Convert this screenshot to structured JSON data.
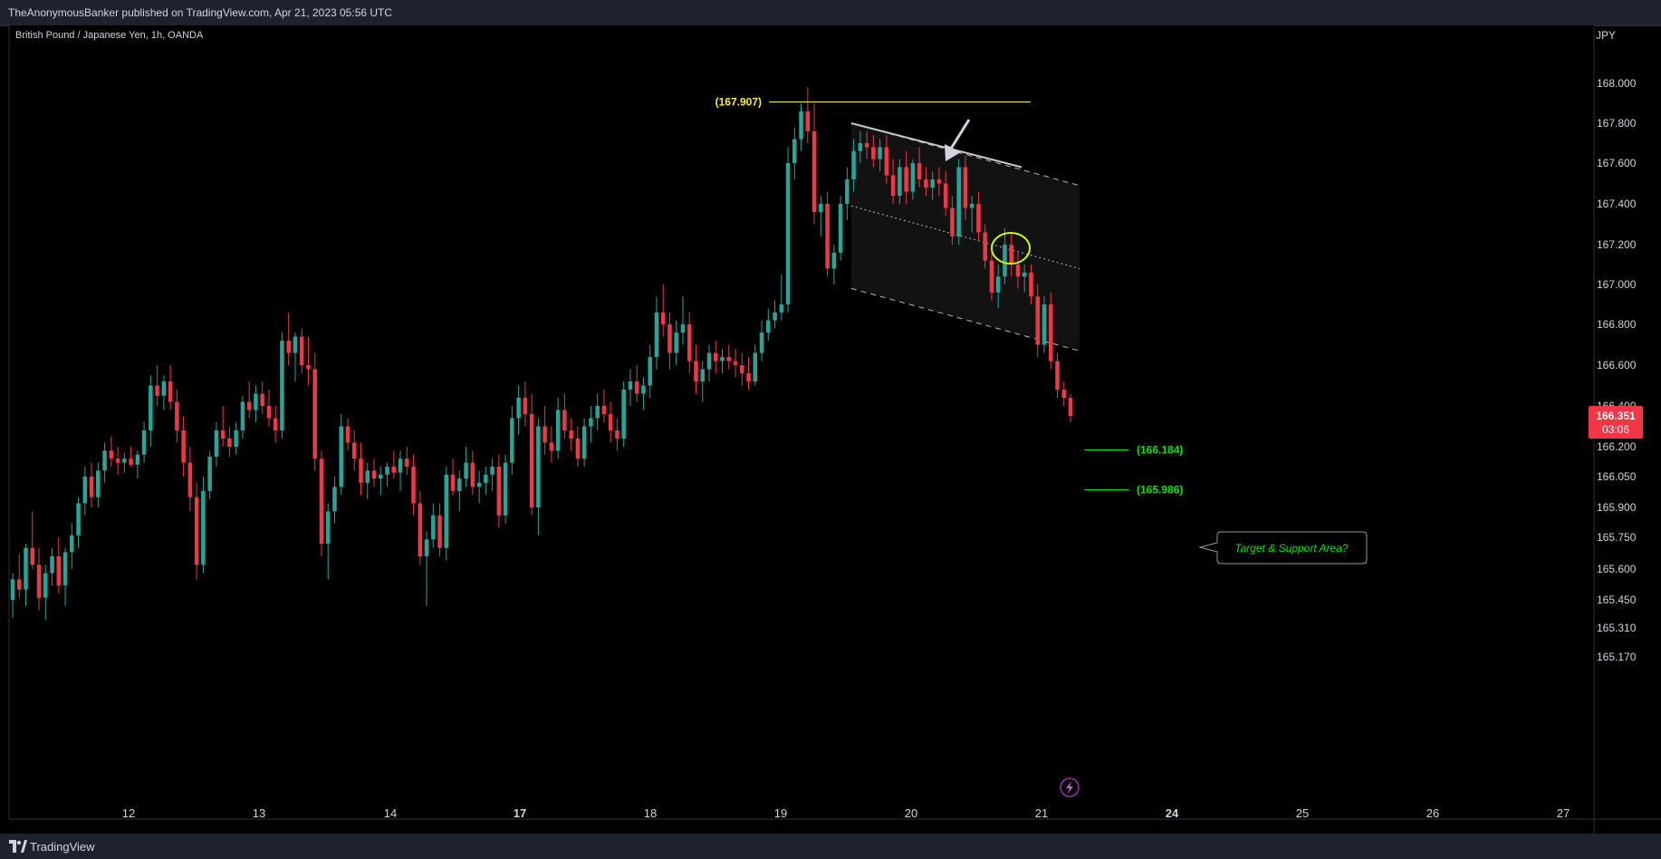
{
  "header": {
    "publisher_line": "TheAnonymousBanker published on TradingView.com, Apr 21, 2023 05:56 UTC"
  },
  "footer": {
    "brand": "TradingView"
  },
  "chart_data": {
    "type": "candlestick",
    "title": "British Pound / Japanese Yen, 1h, OANDA",
    "currency": "JPY",
    "price_label": "166.351",
    "countdown_label": "03:06",
    "y_ticks": [
      168.0,
      167.8,
      167.6,
      167.4,
      167.2,
      167.0,
      166.8,
      166.6,
      166.4,
      166.2,
      166.05,
      165.9,
      165.75,
      165.6,
      165.45,
      165.31,
      165.17
    ],
    "y_tick_labels": [
      "168.000",
      "167.800",
      "167.600",
      "167.400",
      "167.200",
      "167.000",
      "166.800",
      "166.600",
      "166.400",
      "166.200",
      "166.050",
      "165.900",
      "165.750",
      "165.600",
      "165.450",
      "165.310",
      "165.170"
    ],
    "x_tick_labels": [
      "12",
      "13",
      "14",
      "17",
      "18",
      "19",
      "20",
      "21",
      "24",
      "25",
      "26",
      "27"
    ],
    "x_tick_bold": [
      false,
      false,
      false,
      true,
      false,
      false,
      false,
      false,
      true,
      false,
      false,
      false
    ],
    "colors": {
      "up": "#26a69a",
      "down": "#f23645",
      "price_tag": "#f23645",
      "resistance": "#ffeb3b",
      "target": "#00e600"
    },
    "candles": [
      {
        "o": 165.45,
        "h": 165.58,
        "l": 165.36,
        "c": 165.55
      },
      {
        "o": 165.55,
        "h": 165.67,
        "l": 165.46,
        "c": 165.5
      },
      {
        "o": 165.5,
        "h": 165.72,
        "l": 165.42,
        "c": 165.7
      },
      {
        "o": 165.7,
        "h": 165.88,
        "l": 165.6,
        "c": 165.62
      },
      {
        "o": 165.62,
        "h": 165.7,
        "l": 165.4,
        "c": 165.46
      },
      {
        "o": 165.46,
        "h": 165.62,
        "l": 165.35,
        "c": 165.58
      },
      {
        "o": 165.58,
        "h": 165.7,
        "l": 165.52,
        "c": 165.66
      },
      {
        "o": 165.66,
        "h": 165.75,
        "l": 165.48,
        "c": 165.52
      },
      {
        "o": 165.52,
        "h": 165.7,
        "l": 165.42,
        "c": 165.68
      },
      {
        "o": 165.68,
        "h": 165.82,
        "l": 165.6,
        "c": 165.76
      },
      {
        "o": 165.76,
        "h": 165.95,
        "l": 165.7,
        "c": 165.92
      },
      {
        "o": 165.92,
        "h": 166.1,
        "l": 165.86,
        "c": 166.05
      },
      {
        "o": 166.05,
        "h": 166.12,
        "l": 165.9,
        "c": 165.95
      },
      {
        "o": 165.95,
        "h": 166.12,
        "l": 165.9,
        "c": 166.08
      },
      {
        "o": 166.08,
        "h": 166.22,
        "l": 166.02,
        "c": 166.18
      },
      {
        "o": 166.18,
        "h": 166.25,
        "l": 166.1,
        "c": 166.14
      },
      {
        "o": 166.14,
        "h": 166.2,
        "l": 166.06,
        "c": 166.12
      },
      {
        "o": 166.12,
        "h": 166.17,
        "l": 166.07,
        "c": 166.14
      },
      {
        "o": 166.14,
        "h": 166.2,
        "l": 166.1,
        "c": 166.11
      },
      {
        "o": 166.11,
        "h": 166.18,
        "l": 166.04,
        "c": 166.16
      },
      {
        "o": 166.16,
        "h": 166.32,
        "l": 166.12,
        "c": 166.28
      },
      {
        "o": 166.28,
        "h": 166.55,
        "l": 166.2,
        "c": 166.5
      },
      {
        "o": 166.5,
        "h": 166.6,
        "l": 166.4,
        "c": 166.45
      },
      {
        "o": 166.45,
        "h": 166.55,
        "l": 166.38,
        "c": 166.52
      },
      {
        "o": 166.52,
        "h": 166.6,
        "l": 166.38,
        "c": 166.42
      },
      {
        "o": 166.42,
        "h": 166.48,
        "l": 166.22,
        "c": 166.28
      },
      {
        "o": 166.28,
        "h": 166.35,
        "l": 166.05,
        "c": 166.12
      },
      {
        "o": 166.12,
        "h": 166.2,
        "l": 165.88,
        "c": 165.95
      },
      {
        "o": 165.95,
        "h": 166.02,
        "l": 165.55,
        "c": 165.62
      },
      {
        "o": 165.62,
        "h": 166.05,
        "l": 165.58,
        "c": 165.98
      },
      {
        "o": 165.98,
        "h": 166.18,
        "l": 165.94,
        "c": 166.15
      },
      {
        "o": 166.15,
        "h": 166.32,
        "l": 166.1,
        "c": 166.28
      },
      {
        "o": 166.28,
        "h": 166.4,
        "l": 166.2,
        "c": 166.24
      },
      {
        "o": 166.24,
        "h": 166.3,
        "l": 166.15,
        "c": 166.2
      },
      {
        "o": 166.2,
        "h": 166.32,
        "l": 166.16,
        "c": 166.28
      },
      {
        "o": 166.28,
        "h": 166.45,
        "l": 166.24,
        "c": 166.42
      },
      {
        "o": 166.42,
        "h": 166.52,
        "l": 166.34,
        "c": 166.38
      },
      {
        "o": 166.38,
        "h": 166.5,
        "l": 166.32,
        "c": 166.46
      },
      {
        "o": 166.46,
        "h": 166.52,
        "l": 166.36,
        "c": 166.4
      },
      {
        "o": 166.4,
        "h": 166.48,
        "l": 166.3,
        "c": 166.34
      },
      {
        "o": 166.34,
        "h": 166.4,
        "l": 166.22,
        "c": 166.28
      },
      {
        "o": 166.28,
        "h": 166.76,
        "l": 166.24,
        "c": 166.72
      },
      {
        "o": 166.72,
        "h": 166.86,
        "l": 166.6,
        "c": 166.66
      },
      {
        "o": 166.66,
        "h": 166.76,
        "l": 166.52,
        "c": 166.74
      },
      {
        "o": 166.74,
        "h": 166.78,
        "l": 166.56,
        "c": 166.6
      },
      {
        "o": 166.6,
        "h": 166.74,
        "l": 166.5,
        "c": 166.58
      },
      {
        "o": 166.58,
        "h": 166.66,
        "l": 166.08,
        "c": 166.14
      },
      {
        "o": 166.14,
        "h": 166.18,
        "l": 165.66,
        "c": 165.72
      },
      {
        "o": 165.72,
        "h": 165.92,
        "l": 165.55,
        "c": 165.88
      },
      {
        "o": 165.88,
        "h": 166.05,
        "l": 165.82,
        "c": 166.0
      },
      {
        "o": 166.0,
        "h": 166.36,
        "l": 165.96,
        "c": 166.3
      },
      {
        "o": 166.3,
        "h": 166.34,
        "l": 166.18,
        "c": 166.22
      },
      {
        "o": 166.22,
        "h": 166.28,
        "l": 166.08,
        "c": 166.14
      },
      {
        "o": 166.14,
        "h": 166.22,
        "l": 165.96,
        "c": 166.02
      },
      {
        "o": 166.02,
        "h": 166.12,
        "l": 165.94,
        "c": 166.08
      },
      {
        "o": 166.08,
        "h": 166.14,
        "l": 166.0,
        "c": 166.04
      },
      {
        "o": 166.04,
        "h": 166.1,
        "l": 165.96,
        "c": 166.06
      },
      {
        "o": 166.06,
        "h": 166.12,
        "l": 166.0,
        "c": 166.1
      },
      {
        "o": 166.1,
        "h": 166.18,
        "l": 166.04,
        "c": 166.07
      },
      {
        "o": 166.07,
        "h": 166.18,
        "l": 165.98,
        "c": 166.14
      },
      {
        "o": 166.14,
        "h": 166.2,
        "l": 166.06,
        "c": 166.1
      },
      {
        "o": 166.1,
        "h": 166.16,
        "l": 165.86,
        "c": 165.92
      },
      {
        "o": 165.92,
        "h": 165.98,
        "l": 165.62,
        "c": 165.66
      },
      {
        "o": 165.66,
        "h": 165.78,
        "l": 165.42,
        "c": 165.74
      },
      {
        "o": 165.74,
        "h": 165.92,
        "l": 165.7,
        "c": 165.86
      },
      {
        "o": 165.86,
        "h": 165.92,
        "l": 165.66,
        "c": 165.7
      },
      {
        "o": 165.7,
        "h": 166.1,
        "l": 165.64,
        "c": 166.06
      },
      {
        "o": 166.06,
        "h": 166.14,
        "l": 165.96,
        "c": 165.98
      },
      {
        "o": 165.98,
        "h": 166.08,
        "l": 165.88,
        "c": 166.04
      },
      {
        "o": 166.04,
        "h": 166.2,
        "l": 166.0,
        "c": 166.12
      },
      {
        "o": 166.12,
        "h": 166.18,
        "l": 165.96,
        "c": 166.0
      },
      {
        "o": 166.0,
        "h": 166.08,
        "l": 165.92,
        "c": 166.02
      },
      {
        "o": 166.02,
        "h": 166.1,
        "l": 165.96,
        "c": 166.06
      },
      {
        "o": 166.06,
        "h": 166.14,
        "l": 165.98,
        "c": 166.1
      },
      {
        "o": 166.1,
        "h": 166.16,
        "l": 165.8,
        "c": 165.86
      },
      {
        "o": 165.86,
        "h": 166.16,
        "l": 165.82,
        "c": 166.12
      },
      {
        "o": 166.12,
        "h": 166.4,
        "l": 166.06,
        "c": 166.34
      },
      {
        "o": 166.34,
        "h": 166.5,
        "l": 166.26,
        "c": 166.44
      },
      {
        "o": 166.44,
        "h": 166.52,
        "l": 166.3,
        "c": 166.36
      },
      {
        "o": 166.36,
        "h": 166.46,
        "l": 165.86,
        "c": 165.9
      },
      {
        "o": 165.9,
        "h": 166.34,
        "l": 165.76,
        "c": 166.3
      },
      {
        "o": 166.3,
        "h": 166.4,
        "l": 166.16,
        "c": 166.22
      },
      {
        "o": 166.22,
        "h": 166.3,
        "l": 166.12,
        "c": 166.18
      },
      {
        "o": 166.18,
        "h": 166.44,
        "l": 166.14,
        "c": 166.38
      },
      {
        "o": 166.38,
        "h": 166.46,
        "l": 166.24,
        "c": 166.28
      },
      {
        "o": 166.28,
        "h": 166.34,
        "l": 166.18,
        "c": 166.24
      },
      {
        "o": 166.24,
        "h": 166.3,
        "l": 166.1,
        "c": 166.14
      },
      {
        "o": 166.14,
        "h": 166.34,
        "l": 166.1,
        "c": 166.3
      },
      {
        "o": 166.3,
        "h": 166.4,
        "l": 166.22,
        "c": 166.34
      },
      {
        "o": 166.34,
        "h": 166.46,
        "l": 166.28,
        "c": 166.4
      },
      {
        "o": 166.4,
        "h": 166.48,
        "l": 166.32,
        "c": 166.36
      },
      {
        "o": 166.36,
        "h": 166.42,
        "l": 166.22,
        "c": 166.28
      },
      {
        "o": 166.28,
        "h": 166.34,
        "l": 166.18,
        "c": 166.24
      },
      {
        "o": 166.24,
        "h": 166.52,
        "l": 166.2,
        "c": 166.48
      },
      {
        "o": 166.48,
        "h": 166.58,
        "l": 166.4,
        "c": 166.52
      },
      {
        "o": 166.52,
        "h": 166.6,
        "l": 166.42,
        "c": 166.46
      },
      {
        "o": 166.46,
        "h": 166.54,
        "l": 166.38,
        "c": 166.5
      },
      {
        "o": 166.5,
        "h": 166.7,
        "l": 166.44,
        "c": 166.64
      },
      {
        "o": 166.64,
        "h": 166.94,
        "l": 166.58,
        "c": 166.86
      },
      {
        "o": 166.86,
        "h": 167.0,
        "l": 166.74,
        "c": 166.8
      },
      {
        "o": 166.8,
        "h": 166.86,
        "l": 166.58,
        "c": 166.66
      },
      {
        "o": 166.66,
        "h": 166.82,
        "l": 166.6,
        "c": 166.76
      },
      {
        "o": 166.76,
        "h": 166.94,
        "l": 166.7,
        "c": 166.8
      },
      {
        "o": 166.8,
        "h": 166.86,
        "l": 166.56,
        "c": 166.62
      },
      {
        "o": 166.62,
        "h": 166.7,
        "l": 166.46,
        "c": 166.52
      },
      {
        "o": 166.52,
        "h": 166.62,
        "l": 166.42,
        "c": 166.58
      },
      {
        "o": 166.58,
        "h": 166.7,
        "l": 166.52,
        "c": 166.66
      },
      {
        "o": 166.66,
        "h": 166.72,
        "l": 166.56,
        "c": 166.62
      },
      {
        "o": 166.62,
        "h": 166.68,
        "l": 166.56,
        "c": 166.64
      },
      {
        "o": 166.64,
        "h": 166.7,
        "l": 166.58,
        "c": 166.62
      },
      {
        "o": 166.62,
        "h": 166.68,
        "l": 166.54,
        "c": 166.6
      },
      {
        "o": 166.6,
        "h": 166.66,
        "l": 166.5,
        "c": 166.56
      },
      {
        "o": 166.56,
        "h": 166.64,
        "l": 166.48,
        "c": 166.52
      },
      {
        "o": 166.52,
        "h": 166.7,
        "l": 166.5,
        "c": 166.66
      },
      {
        "o": 166.66,
        "h": 166.82,
        "l": 166.62,
        "c": 166.76
      },
      {
        "o": 166.76,
        "h": 166.88,
        "l": 166.72,
        "c": 166.82
      },
      {
        "o": 166.82,
        "h": 166.92,
        "l": 166.78,
        "c": 166.86
      },
      {
        "o": 166.86,
        "h": 167.05,
        "l": 166.82,
        "c": 166.9
      },
      {
        "o": 166.9,
        "h": 167.68,
        "l": 166.86,
        "c": 167.6
      },
      {
        "o": 167.6,
        "h": 167.78,
        "l": 167.52,
        "c": 167.72
      },
      {
        "o": 167.72,
        "h": 167.9,
        "l": 167.66,
        "c": 167.86
      },
      {
        "o": 167.86,
        "h": 167.98,
        "l": 167.7,
        "c": 167.76
      },
      {
        "o": 167.76,
        "h": 167.9,
        "l": 167.3,
        "c": 167.36
      },
      {
        "o": 167.36,
        "h": 167.44,
        "l": 167.24,
        "c": 167.4
      },
      {
        "o": 167.4,
        "h": 167.46,
        "l": 167.04,
        "c": 167.08
      },
      {
        "o": 167.08,
        "h": 167.2,
        "l": 167.0,
        "c": 167.16
      },
      {
        "o": 167.16,
        "h": 167.44,
        "l": 167.12,
        "c": 167.4
      },
      {
        "o": 167.4,
        "h": 167.58,
        "l": 167.32,
        "c": 167.52
      },
      {
        "o": 167.52,
        "h": 167.72,
        "l": 167.46,
        "c": 167.66
      },
      {
        "o": 167.66,
        "h": 167.76,
        "l": 167.6,
        "c": 167.7
      },
      {
        "o": 167.7,
        "h": 167.76,
        "l": 167.62,
        "c": 167.68
      },
      {
        "o": 167.68,
        "h": 167.74,
        "l": 167.58,
        "c": 167.62
      },
      {
        "o": 167.62,
        "h": 167.72,
        "l": 167.56,
        "c": 167.68
      },
      {
        "o": 167.68,
        "h": 167.74,
        "l": 167.5,
        "c": 167.54
      },
      {
        "o": 167.54,
        "h": 167.62,
        "l": 167.4,
        "c": 167.44
      },
      {
        "o": 167.44,
        "h": 167.62,
        "l": 167.4,
        "c": 167.58
      },
      {
        "o": 167.58,
        "h": 167.66,
        "l": 167.4,
        "c": 167.46
      },
      {
        "o": 167.46,
        "h": 167.62,
        "l": 167.42,
        "c": 167.6
      },
      {
        "o": 167.6,
        "h": 167.68,
        "l": 167.48,
        "c": 167.52
      },
      {
        "o": 167.52,
        "h": 167.58,
        "l": 167.44,
        "c": 167.48
      },
      {
        "o": 167.48,
        "h": 167.56,
        "l": 167.42,
        "c": 167.52
      },
      {
        "o": 167.52,
        "h": 167.58,
        "l": 167.44,
        "c": 167.5
      },
      {
        "o": 167.5,
        "h": 167.56,
        "l": 167.34,
        "c": 167.38
      },
      {
        "o": 167.38,
        "h": 167.44,
        "l": 167.2,
        "c": 167.24
      },
      {
        "o": 167.24,
        "h": 167.62,
        "l": 167.2,
        "c": 167.58
      },
      {
        "o": 167.58,
        "h": 167.64,
        "l": 167.32,
        "c": 167.38
      },
      {
        "o": 167.38,
        "h": 167.44,
        "l": 167.26,
        "c": 167.4
      },
      {
        "o": 167.4,
        "h": 167.46,
        "l": 167.22,
        "c": 167.26
      },
      {
        "o": 167.26,
        "h": 167.3,
        "l": 167.08,
        "c": 167.12
      },
      {
        "o": 167.12,
        "h": 167.18,
        "l": 166.92,
        "c": 166.96
      },
      {
        "o": 166.96,
        "h": 167.1,
        "l": 166.88,
        "c": 167.04
      },
      {
        "o": 167.04,
        "h": 167.28,
        "l": 167.0,
        "c": 167.2
      },
      {
        "o": 167.2,
        "h": 167.26,
        "l": 167.04,
        "c": 167.1
      },
      {
        "o": 167.1,
        "h": 167.16,
        "l": 166.98,
        "c": 167.04
      },
      {
        "o": 167.04,
        "h": 167.1,
        "l": 166.96,
        "c": 167.06
      },
      {
        "o": 167.06,
        "h": 167.1,
        "l": 166.9,
        "c": 166.94
      },
      {
        "o": 166.94,
        "h": 167.0,
        "l": 166.64,
        "c": 166.7
      },
      {
        "o": 166.7,
        "h": 166.94,
        "l": 166.66,
        "c": 166.9
      },
      {
        "o": 166.9,
        "h": 166.96,
        "l": 166.58,
        "c": 166.62
      },
      {
        "o": 166.62,
        "h": 166.66,
        "l": 166.44,
        "c": 166.48
      },
      {
        "o": 166.48,
        "h": 166.52,
        "l": 166.4,
        "c": 166.44
      },
      {
        "o": 166.44,
        "h": 166.46,
        "l": 166.32,
        "c": 166.351
      }
    ],
    "annotations": {
      "resistance_level": 167.907,
      "resistance_label": "(167.907)",
      "target_upper": 166.184,
      "target_upper_label": "(166.184)",
      "target_lower": 165.986,
      "target_lower_label": "(165.986)",
      "callout_text": "Target & Support Area?"
    }
  }
}
